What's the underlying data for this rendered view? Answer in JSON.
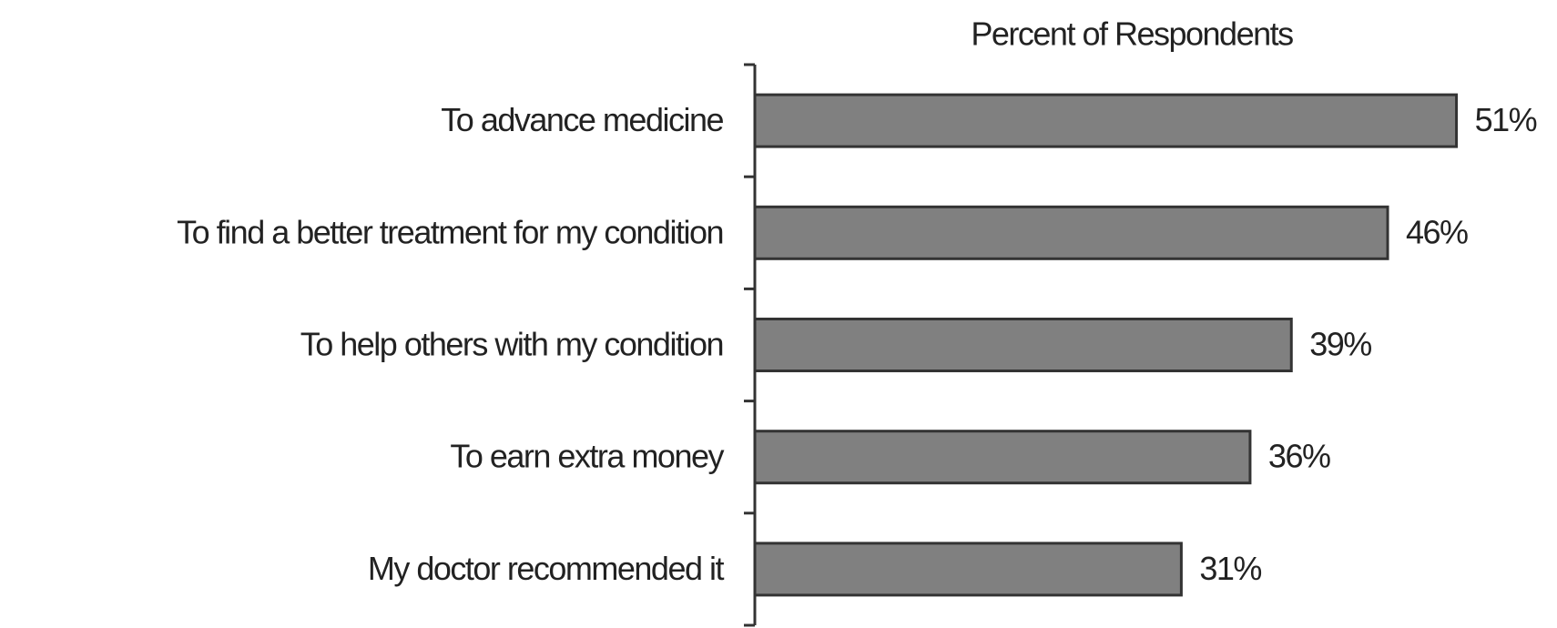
{
  "chart_data": {
    "type": "bar",
    "orientation": "horizontal",
    "title": "Percent of Respondents",
    "categories": [
      "To advance medicine",
      "To find a better treatment for my condition",
      "To help others with my condition",
      "To earn extra money",
      "My doctor recommended it"
    ],
    "values": [
      51,
      46,
      39,
      36,
      31
    ],
    "value_labels": [
      "51%",
      "46%",
      "39%",
      "36%",
      "31%"
    ],
    "color": "#808080",
    "xlim": [
      0,
      55
    ]
  }
}
